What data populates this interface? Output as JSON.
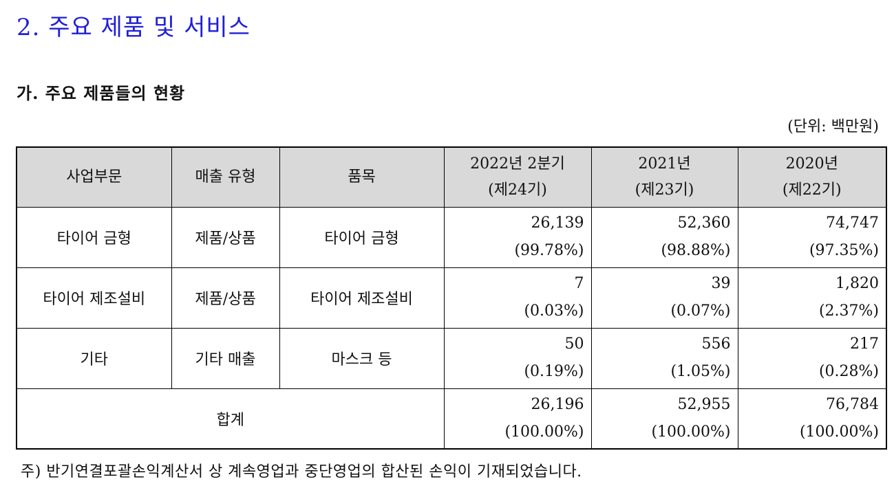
{
  "section_title": "2. 주요 제품 및 서비스",
  "subsection_title": "가. 주요 제품들의 현황",
  "unit": "(단위: 백만원)",
  "table": {
    "headers": {
      "segment": "사업부문",
      "sales_type": "매출 유형",
      "item": "품목",
      "period1_line1": "2022년 2분기",
      "period1_line2": "(제24기)",
      "period2_line1": "2021년",
      "period2_line2": "(제23기)",
      "period3_line1": "2020년",
      "period3_line2": "(제22기)"
    },
    "rows": [
      {
        "segment": "타이어 금형",
        "sales_type": "제품/상품",
        "item": "타이어 금형",
        "p1_value": "26,139",
        "p1_pct": "(99.78%)",
        "p2_value": "52,360",
        "p2_pct": "(98.88%)",
        "p3_value": "74,747",
        "p3_pct": "(97.35%)"
      },
      {
        "segment": "타이어 제조설비",
        "sales_type": "제품/상품",
        "item": "타이어 제조설비",
        "p1_value": "7",
        "p1_pct": "(0.03%)",
        "p2_value": "39",
        "p2_pct": "(0.07%)",
        "p3_value": "1,820",
        "p3_pct": "(2.37%)"
      },
      {
        "segment": "기타",
        "sales_type": "기타 매출",
        "item": "마스크 등",
        "p1_value": "50",
        "p1_pct": "(0.19%)",
        "p2_value": "556",
        "p2_pct": "(1.05%)",
        "p3_value": "217",
        "p3_pct": "(0.28%)"
      }
    ],
    "total": {
      "label": "합계",
      "p1_value": "26,196",
      "p1_pct": "(100.00%)",
      "p2_value": "52,955",
      "p2_pct": "(100.00%)",
      "p3_value": "76,784",
      "p3_pct": "(100.00%)"
    }
  },
  "footnote": "주) 반기연결포괄손익계산서 상 계속영업과 중단영업의 합산된 손익이 기재되었습니다."
}
